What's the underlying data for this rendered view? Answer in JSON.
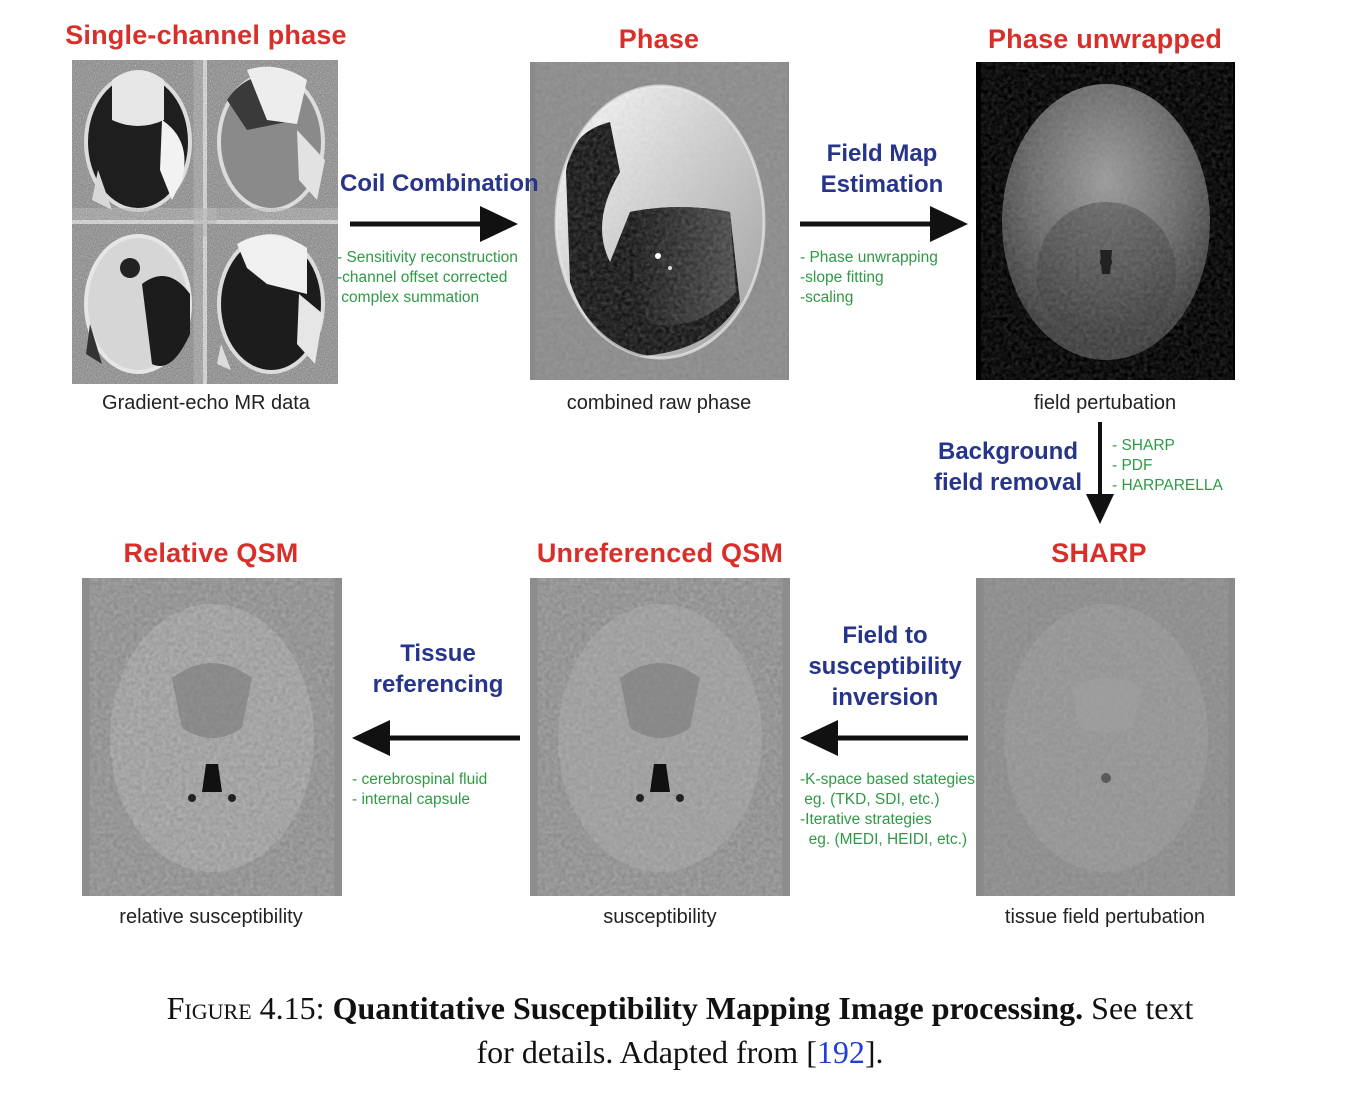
{
  "stages": {
    "single_channel": {
      "title": "Single-channel phase",
      "caption": "Gradient-echo MR data"
    },
    "phase": {
      "title": "Phase",
      "caption": "combined raw phase"
    },
    "unwrapped": {
      "title": "Phase unwrapped",
      "caption": "field pertubation"
    },
    "sharp": {
      "title": "SHARP",
      "caption": "tissue field pertubation"
    },
    "unreferenced": {
      "title": "Unreferenced QSM",
      "caption": "susceptibility"
    },
    "relative": {
      "title": "Relative QSM",
      "caption": "relative susceptibility"
    }
  },
  "steps": {
    "coil": {
      "label_lines": [
        "Coil Combination"
      ],
      "notes": [
        "- Sensitivity reconstruction",
        "-channel offset corrected",
        " complex summation"
      ]
    },
    "fieldmap": {
      "label_lines": [
        "Field Map",
        "Estimation"
      ],
      "notes": [
        "- Phase unwrapping",
        "-slope fitting",
        "-scaling"
      ]
    },
    "background": {
      "label_lines": [
        "Background",
        "field removal"
      ],
      "notes": [
        "- SHARP",
        "- PDF",
        "- HARPARELLA"
      ]
    },
    "inversion": {
      "label_lines": [
        "Field to",
        "susceptibility",
        "inversion"
      ],
      "notes": [
        "-K-space based stategies",
        " eg. (TKD, SDI, etc.)",
        "-Iterative strategies",
        "  eg. (MEDI, HEIDI, etc.)"
      ]
    },
    "referencing": {
      "label_lines": [
        "Tissue",
        "referencing"
      ],
      "notes": [
        "- cerebrospinal fluid",
        "- internal capsule"
      ]
    }
  },
  "figure_caption": {
    "label": "Figure 4.15:",
    "bold": "Quantitative Susceptibility Mapping Image processing.",
    "text1": "See text",
    "text2": "for details. Adapted from [",
    "ref": "192",
    "text3": "]."
  },
  "colors": {
    "title_red": "#d92f2a",
    "step_blue": "#26348a",
    "note_green": "#2f9a45",
    "ref_blue": "#1f3fd6"
  }
}
